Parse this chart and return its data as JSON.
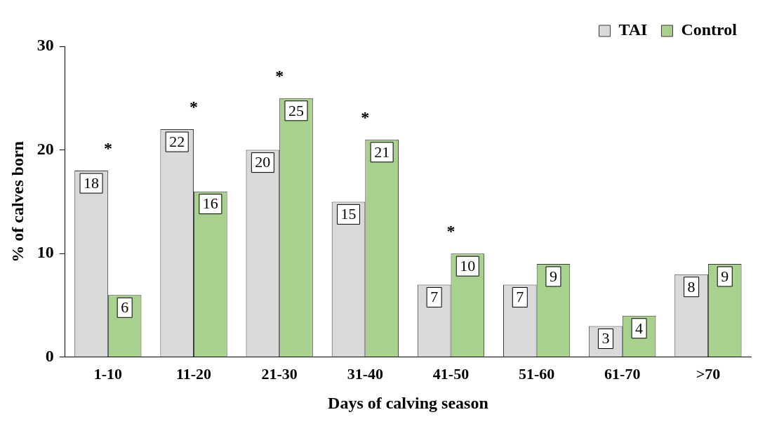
{
  "chart_data": {
    "type": "bar",
    "xlabel": "Days of calving season",
    "ylabel": "% of calves born",
    "categories": [
      "1-10",
      "11-20",
      "21-30",
      "31-40",
      "41-50",
      "51-60",
      "61-70",
      ">70"
    ],
    "series": [
      {
        "name": "TAI",
        "color": "#d9d9d9",
        "values": [
          18,
          22,
          20,
          15,
          7,
          7,
          3,
          8
        ]
      },
      {
        "name": "Control",
        "color": "#a9d18e",
        "values": [
          6,
          16,
          25,
          21,
          10,
          9,
          4,
          9
        ]
      }
    ],
    "ylim": [
      0,
      30
    ],
    "yticks": [
      0,
      10,
      20,
      30
    ],
    "grid": false,
    "legend": "top right",
    "data_labels": true,
    "annotations": [
      "*",
      "*",
      "*",
      "*",
      "*"
    ]
  }
}
